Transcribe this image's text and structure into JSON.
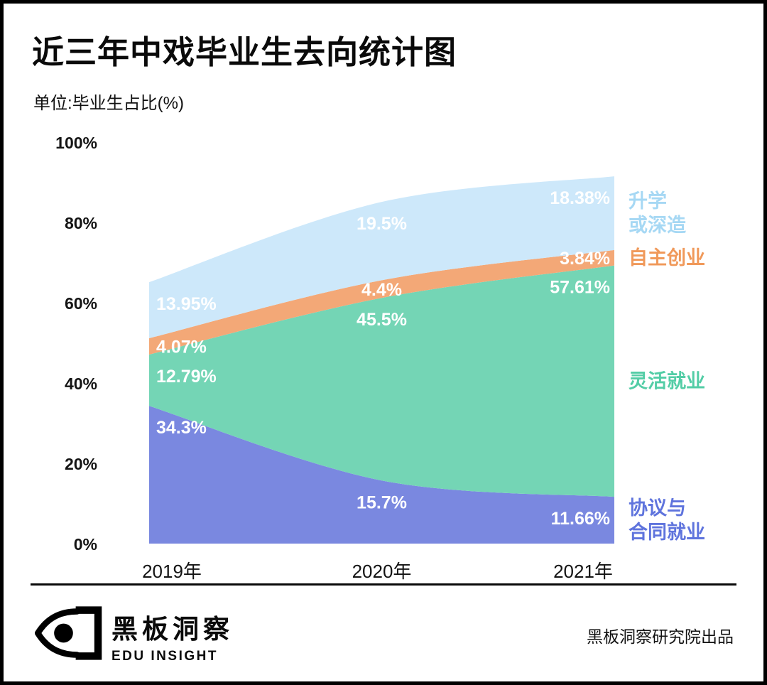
{
  "chart_data": {
    "type": "area",
    "stacked": true,
    "title": "近三年中戏毕业生去向统计图",
    "subtitle": "单位:毕业生占比(%)",
    "x": [
      "2019年",
      "2020年",
      "2021年"
    ],
    "ylim": [
      0,
      100
    ],
    "yticks": [
      0,
      20,
      40,
      60,
      80,
      100
    ],
    "ytick_labels": [
      "0%",
      "20%",
      "40%",
      "60%",
      "80%",
      "100%"
    ],
    "grid": false,
    "legend_position": "right",
    "value_label_color": "#ffffff",
    "series": [
      {
        "name": "协议与合同就业",
        "legend_lines": [
          "协议与",
          "合同就业"
        ],
        "values": [
          34.3,
          15.7,
          11.66
        ],
        "data_labels": [
          "34.3%",
          "15.7%",
          "11.66%"
        ],
        "fill": "#7a88e0",
        "label_color": "#5f74dd"
      },
      {
        "name": "灵活就业",
        "legend_lines": [
          "灵活就业"
        ],
        "values": [
          12.79,
          45.5,
          57.61
        ],
        "data_labels": [
          "12.79%",
          "45.5%",
          "57.61%"
        ],
        "fill": "#74d5b5",
        "label_color": "#53cda6"
      },
      {
        "name": "自主创业",
        "legend_lines": [
          "自主创业"
        ],
        "values": [
          4.07,
          4.4,
          3.84
        ],
        "data_labels": [
          "4.07%",
          "4.4%",
          "3.84%"
        ],
        "fill": "#f3a877",
        "label_color": "#f0995a"
      },
      {
        "name": "升学或深造",
        "legend_lines": [
          "升学",
          "或深造"
        ],
        "values": [
          13.95,
          19.5,
          18.38
        ],
        "data_labels": [
          "13.95%",
          "19.5%",
          "18.38%"
        ],
        "fill": "#cde8fa",
        "label_color": "#a6d8f4"
      }
    ]
  },
  "footer": {
    "brand_name": "黑板洞察",
    "brand_subtitle": "EDU INSIGHT",
    "credit": "黑板洞察研究院出品"
  }
}
